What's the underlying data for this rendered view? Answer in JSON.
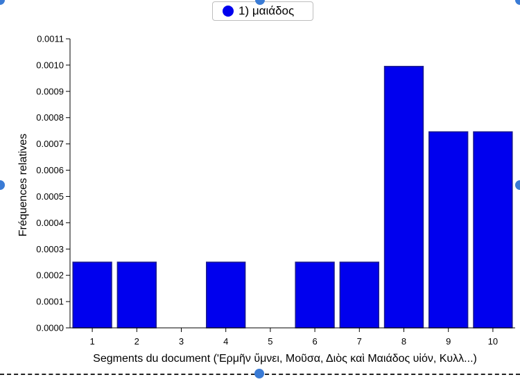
{
  "legend": {
    "label": "1) μαιάδος",
    "color": "#0000ee"
  },
  "chart_data": {
    "type": "bar",
    "categories": [
      "1",
      "2",
      "3",
      "4",
      "5",
      "6",
      "7",
      "8",
      "9",
      "10"
    ],
    "series": [
      {
        "name": "1) μαιάδος",
        "values": [
          0.00025,
          0.00025,
          0,
          0.00025,
          0,
          0.00025,
          0.00025,
          0.000995,
          0.000746,
          0.000746
        ]
      }
    ],
    "xlabel": "Segments du document (ʹΕρμῆν ὕμνει, Μοῦσα, Διὸς καὶ Μαιάδος υἱόν, Κυλλ...)",
    "ylabel": "Fréquences relatives",
    "ylim": [
      0,
      0.0011
    ],
    "yticks": [
      "0.0000",
      "0.0001",
      "0.0002",
      "0.0003",
      "0.0004",
      "0.0005",
      "0.0006",
      "0.0007",
      "0.0008",
      "0.0009",
      "0.0010",
      "0.0011"
    ],
    "bar_color": "#0000ee",
    "bar_stroke": "#1a1a8c",
    "grid": false,
    "legend_position": "top-center"
  }
}
